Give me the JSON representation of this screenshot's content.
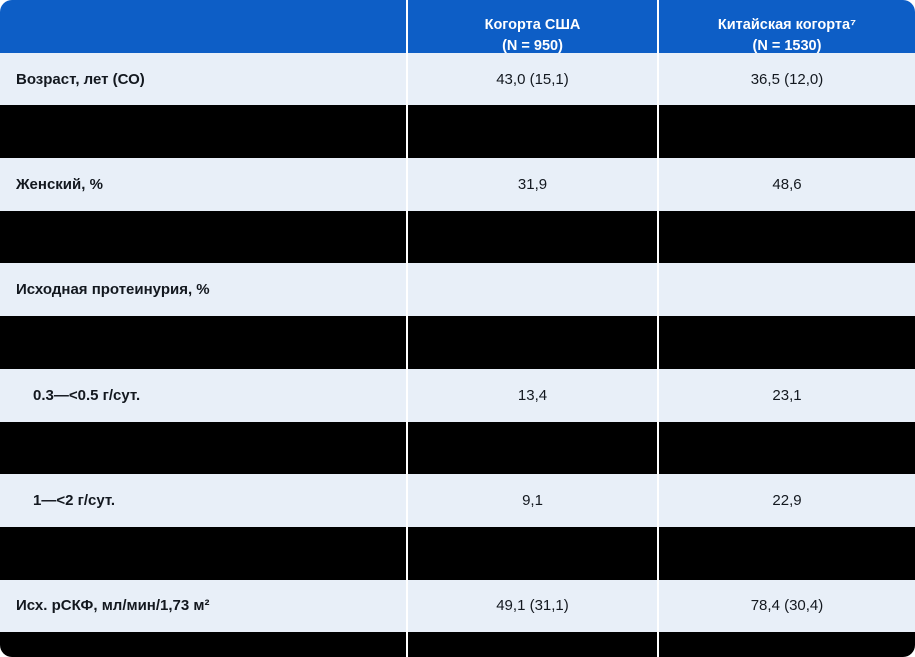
{
  "colors": {
    "header_bg": "#0d5ec6",
    "row_bg": "#e8eff8",
    "redacted_bg": "#000000",
    "header_text": "#ffffff",
    "body_text": "#13181f",
    "separator": "#ffffff"
  },
  "table": {
    "header": [
      {
        "label": ""
      },
      {
        "label": "Когорта США\n(N = 950)"
      },
      {
        "label": "Китайская когорта⁷\n(N = 1530)"
      }
    ],
    "columns": [
      "parameter",
      "us_cohort",
      "china_cohort"
    ],
    "rows": [
      {
        "type": "data",
        "indent": false,
        "label": "Возраст, лет (СО)",
        "us": "43,0 (15,1)",
        "cn": "36,5 (12,0)"
      },
      {
        "type": "redacted"
      },
      {
        "type": "data",
        "indent": false,
        "label": "Женский, %",
        "us": "31,9",
        "cn": "48,6"
      },
      {
        "type": "redacted"
      },
      {
        "type": "data",
        "indent": false,
        "label": "Исходная протеинурия, %",
        "us": "",
        "cn": ""
      },
      {
        "type": "redacted"
      },
      {
        "type": "data",
        "indent": true,
        "label": "0.3—<0.5 г/сут.",
        "us": "13,4",
        "cn": "23,1"
      },
      {
        "type": "redacted"
      },
      {
        "type": "data",
        "indent": true,
        "label": "1—<2 г/сут.",
        "us": "9,1",
        "cn": "22,9"
      },
      {
        "type": "redacted"
      },
      {
        "type": "data",
        "indent": false,
        "label": "Исх. рСКФ, мл/мин/1,73 м²",
        "us": "49,1 (31,1)",
        "cn": "78,4 (30,4)"
      },
      {
        "type": "redacted",
        "partial": true
      }
    ]
  }
}
